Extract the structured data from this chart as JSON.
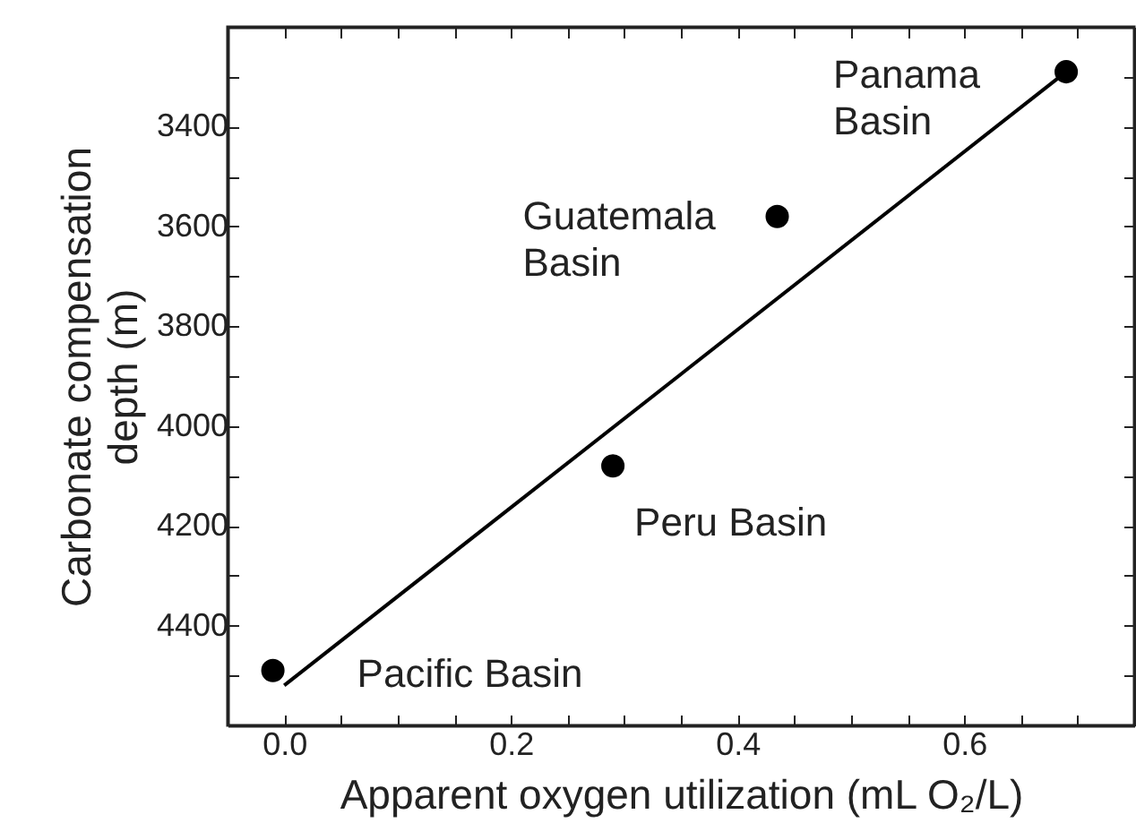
{
  "chart_data": {
    "type": "scatter",
    "xlabel": "Apparent oxygen utilization (mL O₂/L)",
    "ylabel": "Carbonate compensation\ndepth (m)",
    "xlim": [
      -0.05,
      0.75
    ],
    "ylim": [
      4600,
      3200
    ],
    "xticks": [
      {
        "value": -0.05,
        "label": null
      },
      {
        "value": 0,
        "label": "0.0"
      },
      {
        "value": 0.05,
        "label": null
      },
      {
        "value": 0.1,
        "label": null
      },
      {
        "value": 0.15,
        "label": null
      },
      0.2,
      {
        "value": 0.25,
        "label": null
      },
      {
        "value": 0.3,
        "label": null
      },
      {
        "value": 0.35,
        "label": null
      },
      0.4,
      {
        "value": 0.45,
        "label": null
      },
      {
        "value": 0.5,
        "label": null
      },
      {
        "value": 0.55,
        "label": null
      },
      0.6,
      {
        "value": 0.65,
        "label": null
      },
      {
        "value": 0.7,
        "label": null
      }
    ],
    "yticks": [
      {
        "value": 3300,
        "label": null
      },
      3400,
      {
        "value": 3500,
        "label": null
      },
      3600,
      {
        "value": 3700,
        "label": null
      },
      3800,
      {
        "value": 3900,
        "label": null
      },
      4000,
      {
        "value": 4100,
        "label": null
      },
      4200,
      {
        "value": 4300,
        "label": null
      },
      4400,
      {
        "value": 4500,
        "label": null
      }
    ],
    "series": [
      {
        "color": "#000000",
        "marker": "circle",
        "x": [
          -0.01,
          0.29,
          0.435,
          0.69
        ],
        "values": [
          4490,
          4080,
          3580,
          3290
        ]
      },
      {
        "type": "line",
        "color": "#000000",
        "marker": "none",
        "x": [
          0.0,
          0.69
        ],
        "values": [
          4520,
          3290
        ]
      }
    ],
    "annotations": [
      {
        "text": "Panama\nBasin",
        "x": 0.69,
        "y": 3290
      },
      {
        "text": "Guatemala\nBasin",
        "x": 0.435,
        "y": 3580
      },
      {
        "text": "Peru Basin",
        "x": 0.29,
        "y": 4080
      },
      {
        "text": "Pacific Basin",
        "x": -0.01,
        "y": 4490
      }
    ]
  }
}
